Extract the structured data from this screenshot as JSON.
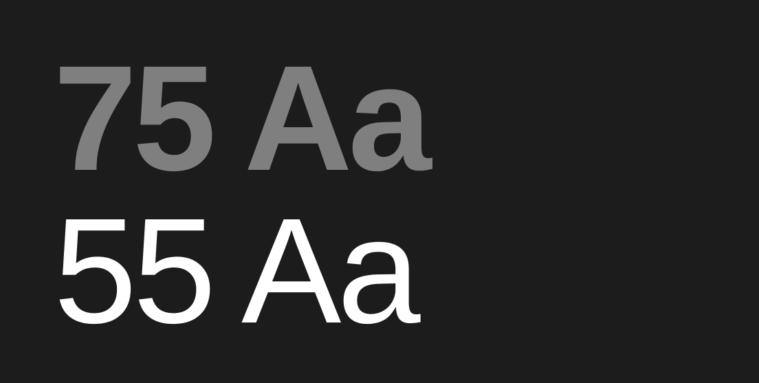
{
  "specimens": [
    {
      "label": "75 Aa",
      "color": "#7f7f7f"
    },
    {
      "label": "55 Aa",
      "color": "#ffffff"
    }
  ],
  "background": "#1c1c1c"
}
